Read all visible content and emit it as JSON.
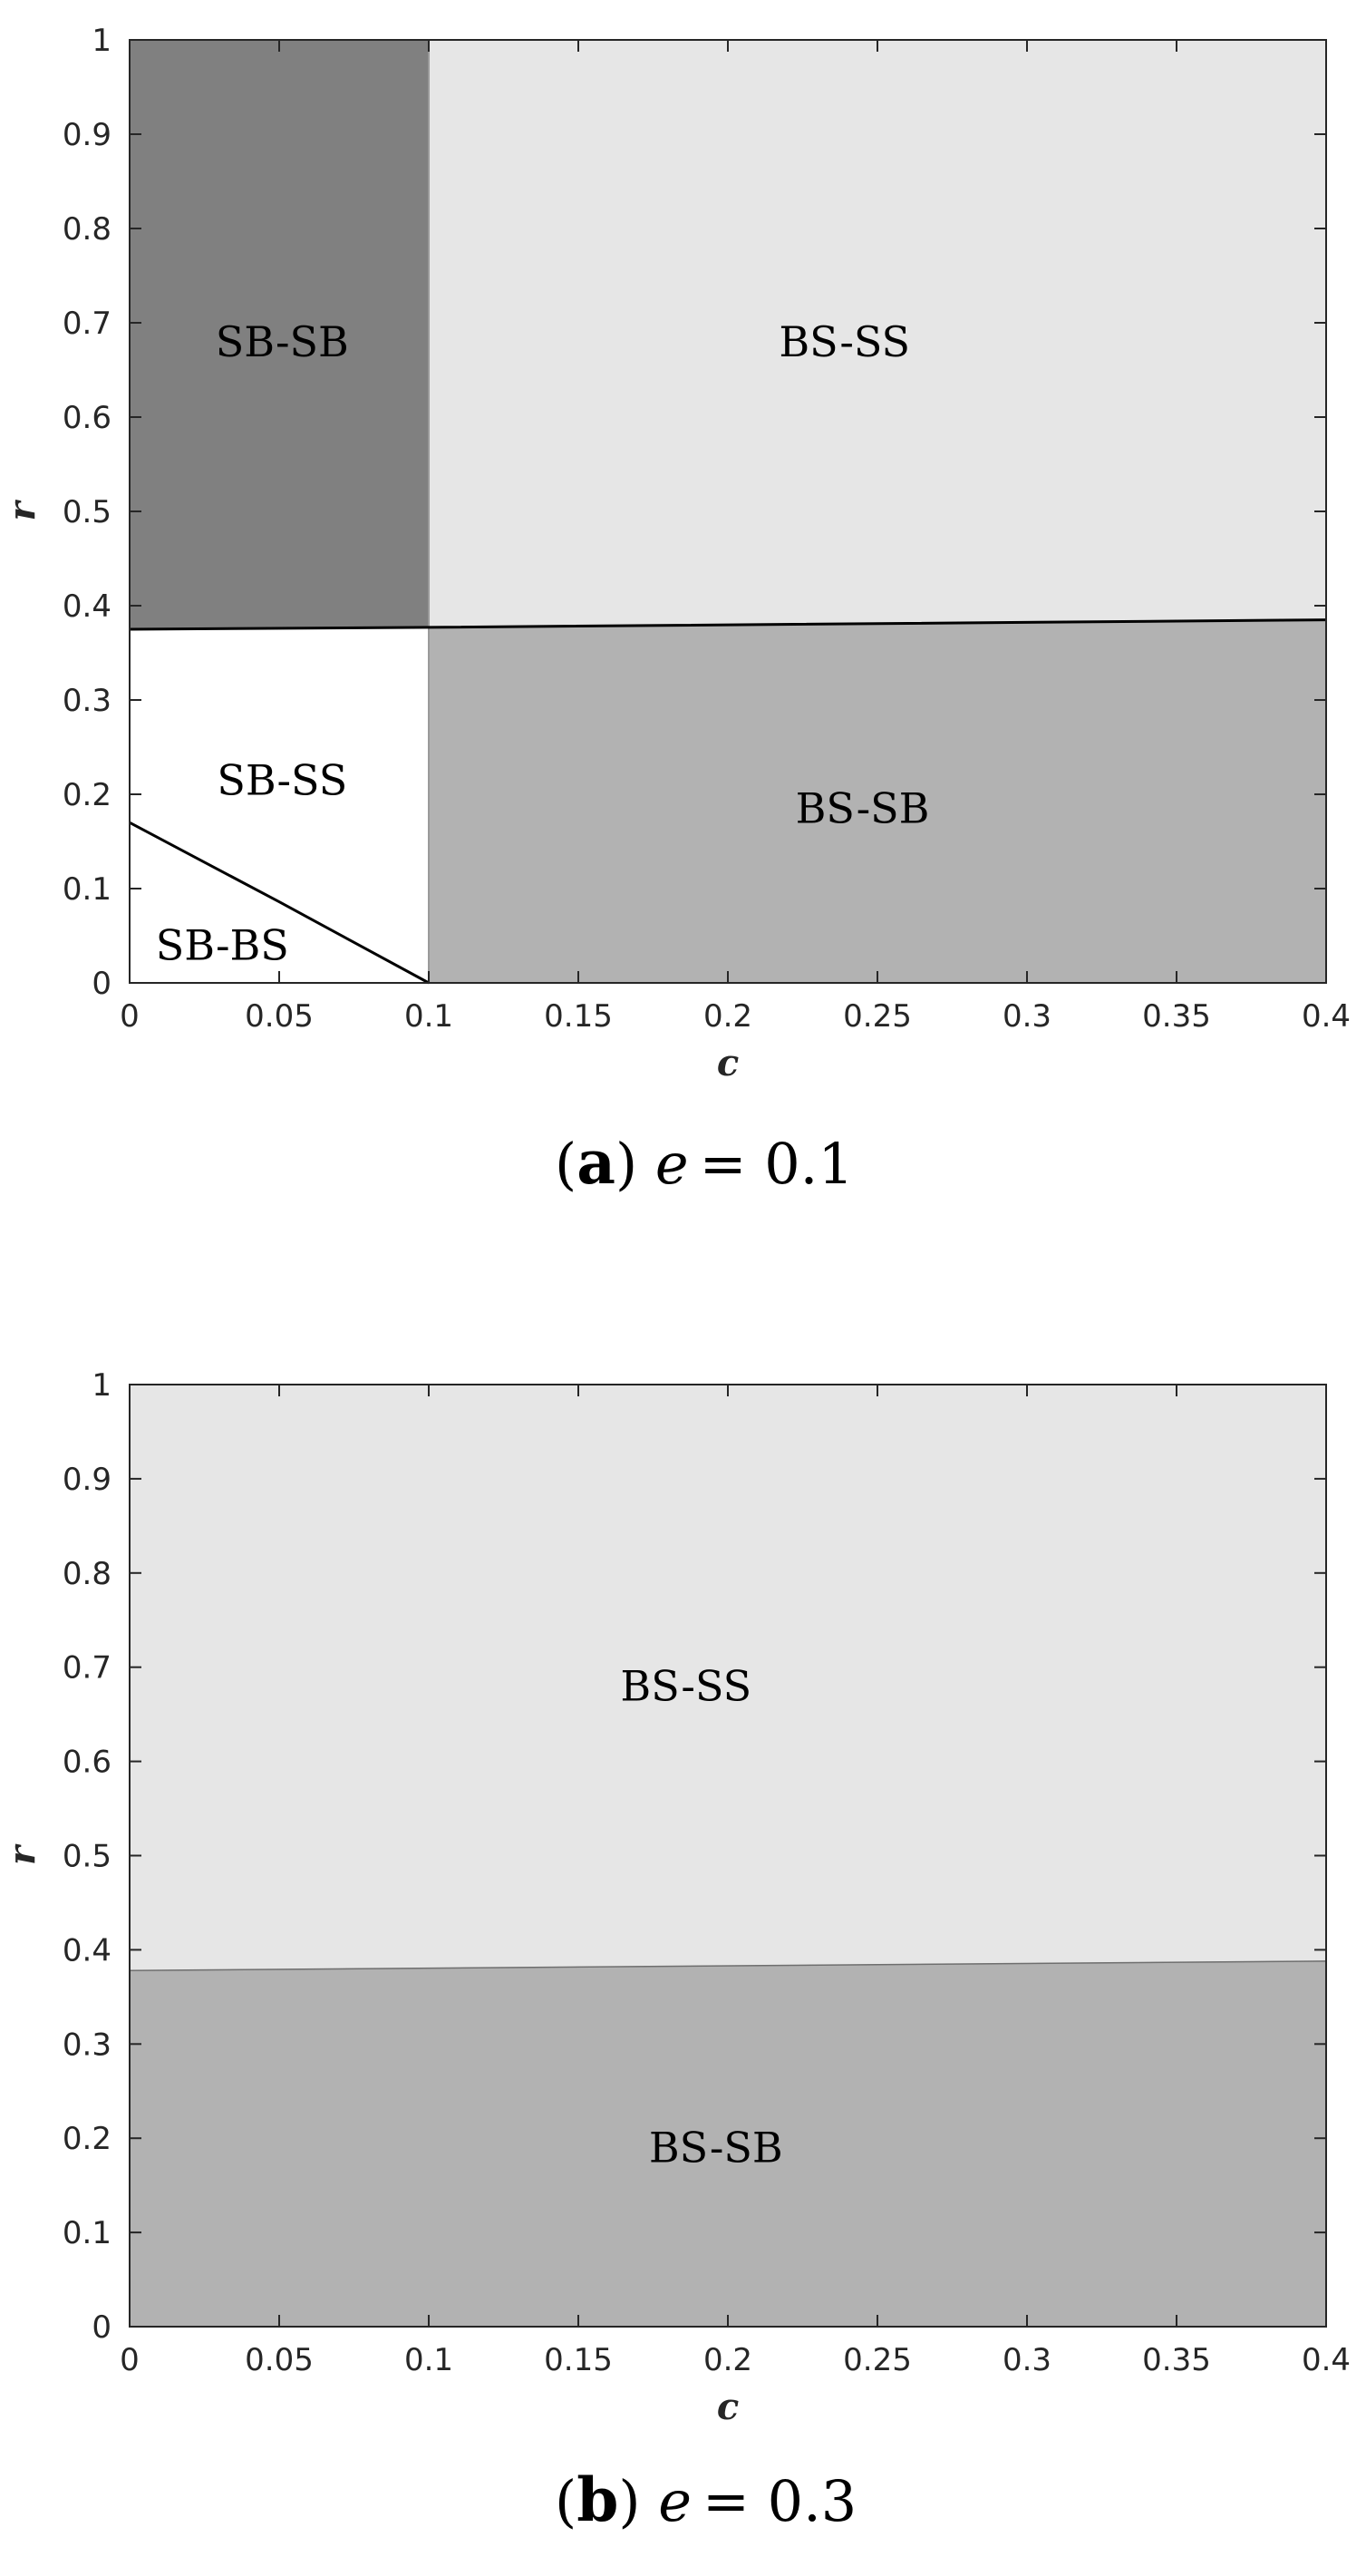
{
  "colors": {
    "dark_gray": "#808080",
    "medium_gray": "#b2b2b2",
    "light_gray": "#e6e6e6",
    "white": "#ffffff",
    "axis": "#262626",
    "boundary": "#000000"
  },
  "chart_data": [
    {
      "type": "heatmap",
      "caption_letter": "a",
      "caption_param": "e",
      "caption_value": "= 0.1",
      "xlabel": "c",
      "ylabel": "r",
      "xlim": [
        0,
        0.4
      ],
      "ylim": [
        0,
        1
      ],
      "xticks": [
        "0",
        "0.05",
        "0.1",
        "0.15",
        "0.2",
        "0.25",
        "0.3",
        "0.35",
        "0.4"
      ],
      "yticks": [
        "0",
        "0.1",
        "0.2",
        "0.3",
        "0.4",
        "0.5",
        "0.6",
        "0.7",
        "0.8",
        "0.9",
        "1"
      ],
      "grid": false,
      "regions": [
        {
          "name": "SB-SB",
          "color": "#808080",
          "polygon": [
            [
              0,
              0.375
            ],
            [
              0.1,
              0.377
            ],
            [
              0.1,
              1
            ],
            [
              0,
              1
            ]
          ],
          "label_at": [
            0.051,
            0.68
          ]
        },
        {
          "name": "BS-SS",
          "color": "#e6e6e6",
          "polygon": [
            [
              0.1,
              0.377
            ],
            [
              0.4,
              0.385
            ],
            [
              0.4,
              1
            ],
            [
              0.1,
              1
            ]
          ],
          "label_at": [
            0.239,
            0.68
          ]
        },
        {
          "name": "SB-SS",
          "color": "#ffffff",
          "polygon": [
            [
              0,
              0.17
            ],
            [
              0.1,
              0
            ],
            [
              0.1,
              0.377
            ],
            [
              0,
              0.375
            ]
          ],
          "label_at": [
            0.051,
            0.215
          ]
        },
        {
          "name": "SB-BS",
          "color": "#ffffff",
          "polygon": [
            [
              0,
              0
            ],
            [
              0.1,
              0
            ],
            [
              0,
              0.17
            ]
          ],
          "label_at": [
            0.031,
            0.04
          ]
        },
        {
          "name": "BS-SB",
          "color": "#b2b2b2",
          "polygon": [
            [
              0.1,
              0
            ],
            [
              0.4,
              0
            ],
            [
              0.4,
              0.385
            ],
            [
              0.1,
              0.377
            ]
          ],
          "label_at": [
            0.245,
            0.185
          ]
        }
      ],
      "boundaries": [
        {
          "points": [
            [
              0,
              0.375
            ],
            [
              0.1,
              0.377
            ],
            [
              0.4,
              0.385
            ]
          ]
        },
        {
          "points": [
            [
              0,
              0.17
            ],
            [
              0.025,
              0.128
            ],
            [
              0.05,
              0.086
            ],
            [
              0.075,
              0.043
            ],
            [
              0.1,
              0
            ]
          ]
        }
      ]
    },
    {
      "type": "heatmap",
      "caption_letter": "b",
      "caption_param": "e",
      "caption_value": "= 0.3",
      "xlabel": "c",
      "ylabel": "r",
      "xlim": [
        0,
        0.4
      ],
      "ylim": [
        0,
        1
      ],
      "xticks": [
        "0",
        "0.05",
        "0.1",
        "0.15",
        "0.2",
        "0.25",
        "0.3",
        "0.35",
        "0.4"
      ],
      "yticks": [
        "0",
        "0.1",
        "0.2",
        "0.3",
        "0.4",
        "0.5",
        "0.6",
        "0.7",
        "0.8",
        "0.9",
        "1"
      ],
      "grid": false,
      "regions": [
        {
          "name": "BS-SS",
          "color": "#e6e6e6",
          "polygon": [
            [
              0,
              0.378
            ],
            [
              0.4,
              0.388
            ],
            [
              0.4,
              1
            ],
            [
              0,
              1
            ]
          ],
          "label_at": [
            0.186,
            0.68
          ]
        },
        {
          "name": "BS-SB",
          "color": "#b2b2b2",
          "polygon": [
            [
              0,
              0
            ],
            [
              0.4,
              0
            ],
            [
              0.4,
              0.388
            ],
            [
              0,
              0.378
            ]
          ],
          "label_at": [
            0.196,
            0.19
          ]
        }
      ],
      "boundaries": []
    }
  ]
}
